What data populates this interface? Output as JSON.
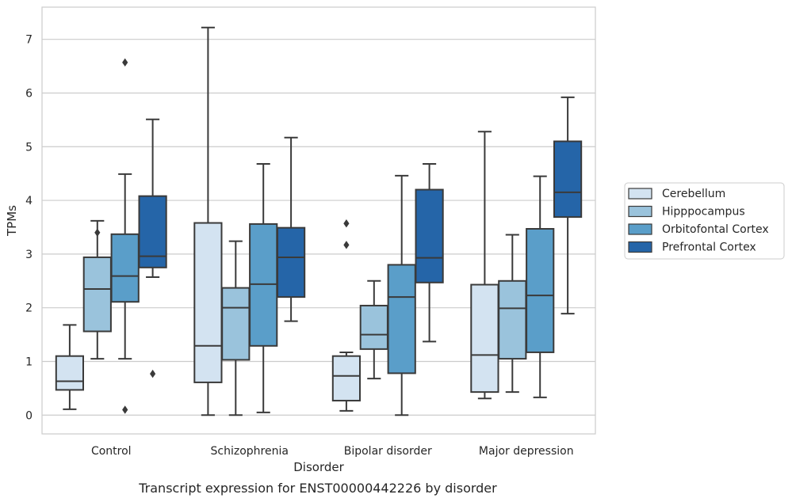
{
  "chart_data": {
    "type": "box",
    "title": "",
    "caption": "Transcript expression for ENST00000442226 by disorder",
    "xlabel": "Disorder",
    "ylabel": "TPMs",
    "ylim": [
      -0.35,
      7.6
    ],
    "yticks": [
      0,
      1,
      2,
      3,
      4,
      5,
      6,
      7
    ],
    "grid": "horizontal",
    "legend_position": "right",
    "categories": [
      "Control",
      "Schizophrenia",
      "Bipolar disorder",
      "Major depression"
    ],
    "series": [
      {
        "name": "Cerebellum",
        "color": "#d3e3f1",
        "boxes": [
          {
            "whisker_low": 0.11,
            "q1": 0.47,
            "median": 0.63,
            "q3": 1.1,
            "whisker_high": 1.68,
            "outliers": []
          },
          {
            "whisker_low": 0.0,
            "q1": 0.61,
            "median": 1.29,
            "q3": 3.58,
            "whisker_high": 7.22,
            "outliers": []
          },
          {
            "whisker_low": 0.08,
            "q1": 0.27,
            "median": 0.73,
            "q3": 1.1,
            "whisker_high": 1.17,
            "outliers": [
              3.17,
              3.57
            ]
          },
          {
            "whisker_low": 0.31,
            "q1": 0.43,
            "median": 1.12,
            "q3": 2.43,
            "whisker_high": 5.28,
            "outliers": []
          }
        ]
      },
      {
        "name": "Hipppocampus",
        "color": "#9ac3dc",
        "boxes": [
          {
            "whisker_low": 1.05,
            "q1": 1.56,
            "median": 2.35,
            "q3": 2.94,
            "whisker_high": 3.62,
            "outliers": [
              3.4
            ]
          },
          {
            "whisker_low": 0.0,
            "q1": 1.03,
            "median": 2.0,
            "q3": 2.37,
            "whisker_high": 3.24,
            "outliers": []
          },
          {
            "whisker_low": 0.68,
            "q1": 1.23,
            "median": 1.5,
            "q3": 2.04,
            "whisker_high": 2.5,
            "outliers": []
          },
          {
            "whisker_low": 0.43,
            "q1": 1.05,
            "median": 1.99,
            "q3": 2.5,
            "whisker_high": 3.36,
            "outliers": []
          }
        ]
      },
      {
        "name": "Orbitofontal Cortex",
        "color": "#5a9ec9",
        "boxes": [
          {
            "whisker_low": 1.05,
            "q1": 2.11,
            "median": 2.59,
            "q3": 3.37,
            "whisker_high": 4.49,
            "outliers": [
              6.57,
              0.1
            ]
          },
          {
            "whisker_low": 0.05,
            "q1": 1.29,
            "median": 2.44,
            "q3": 3.56,
            "whisker_high": 4.68,
            "outliers": []
          },
          {
            "whisker_low": 0.0,
            "q1": 0.78,
            "median": 2.2,
            "q3": 2.8,
            "whisker_high": 4.46,
            "outliers": []
          },
          {
            "whisker_low": 0.33,
            "q1": 1.17,
            "median": 2.23,
            "q3": 3.47,
            "whisker_high": 4.45,
            "outliers": []
          }
        ]
      },
      {
        "name": "Prefrontal Cortex",
        "color": "#2565a8",
        "boxes": [
          {
            "whisker_low": 2.57,
            "q1": 2.75,
            "median": 2.96,
            "q3": 4.08,
            "whisker_high": 5.51,
            "outliers": [
              0.77
            ]
          },
          {
            "whisker_low": 1.75,
            "q1": 2.2,
            "median": 2.94,
            "q3": 3.49,
            "whisker_high": 5.17,
            "outliers": []
          },
          {
            "whisker_low": 1.37,
            "q1": 2.47,
            "median": 2.93,
            "q3": 4.2,
            "whisker_high": 4.68,
            "outliers": []
          },
          {
            "whisker_low": 1.89,
            "q1": 3.69,
            "median": 4.15,
            "q3": 5.1,
            "whisker_high": 5.92,
            "outliers": []
          }
        ]
      }
    ]
  }
}
